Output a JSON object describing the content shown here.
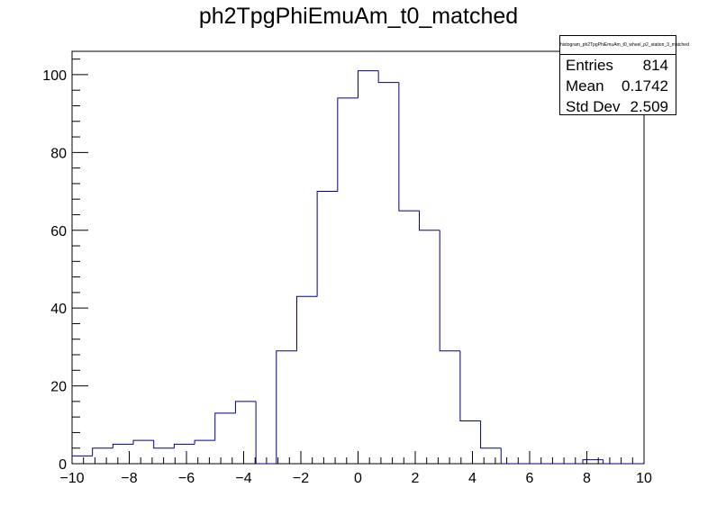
{
  "chart_data": {
    "type": "histogram",
    "title": "ph2TpgPhiEmuAm_t0_matched",
    "xlabel": "",
    "ylabel": "",
    "xlim": [
      -10,
      10
    ],
    "ylim": [
      0,
      106
    ],
    "x_ticks": [
      -10,
      -8,
      -6,
      -4,
      -2,
      0,
      2,
      4,
      6,
      8,
      10
    ],
    "y_ticks": [
      0,
      20,
      40,
      60,
      80,
      100
    ],
    "bin_width": 0.7143,
    "bins": [
      {
        "x0": -10.0,
        "x1": -9.286,
        "count": 2
      },
      {
        "x0": -9.286,
        "x1": -8.571,
        "count": 4
      },
      {
        "x0": -8.571,
        "x1": -7.857,
        "count": 5
      },
      {
        "x0": -7.857,
        "x1": -7.143,
        "count": 6
      },
      {
        "x0": -7.143,
        "x1": -6.429,
        "count": 4
      },
      {
        "x0": -6.429,
        "x1": -5.714,
        "count": 5
      },
      {
        "x0": -5.714,
        "x1": -5.0,
        "count": 6
      },
      {
        "x0": -5.0,
        "x1": -4.286,
        "count": 13
      },
      {
        "x0": -4.286,
        "x1": -3.571,
        "count": 16
      },
      {
        "x0": -3.571,
        "x1": -2.857,
        "count": 0
      },
      {
        "x0": -2.857,
        "x1": -2.143,
        "count": 29
      },
      {
        "x0": -2.143,
        "x1": -1.429,
        "count": 43
      },
      {
        "x0": -1.429,
        "x1": -0.714,
        "count": 70
      },
      {
        "x0": -0.714,
        "x1": 0.0,
        "count": 94
      },
      {
        "x0": 0.0,
        "x1": 0.714,
        "count": 101
      },
      {
        "x0": 0.714,
        "x1": 1.429,
        "count": 98
      },
      {
        "x0": 1.429,
        "x1": 2.143,
        "count": 65
      },
      {
        "x0": 2.143,
        "x1": 2.857,
        "count": 60
      },
      {
        "x0": 2.857,
        "x1": 3.571,
        "count": 29
      },
      {
        "x0": 3.571,
        "x1": 4.286,
        "count": 11
      },
      {
        "x0": 4.286,
        "x1": 5.0,
        "count": 4
      },
      {
        "x0": 5.0,
        "x1": 5.714,
        "count": 0
      },
      {
        "x0": 5.714,
        "x1": 6.429,
        "count": 0
      },
      {
        "x0": 6.429,
        "x1": 7.143,
        "count": 0
      },
      {
        "x0": 7.143,
        "x1": 7.857,
        "count": 0
      },
      {
        "x0": 7.857,
        "x1": 8.571,
        "count": 1
      },
      {
        "x0": 8.571,
        "x1": 9.286,
        "count": 0
      },
      {
        "x0": 9.286,
        "x1": 10.0,
        "count": 0
      }
    ],
    "line_color": "#000080",
    "stats": {
      "name": "histogram_ph2TpgPhiEmuAm_t0_wheel_p2_station_3_matched",
      "rows": [
        {
          "label": "Entries",
          "value": "814"
        },
        {
          "label": "Mean",
          "value": "0.1742"
        },
        {
          "label": "Std Dev",
          "value": "2.509"
        }
      ]
    }
  }
}
